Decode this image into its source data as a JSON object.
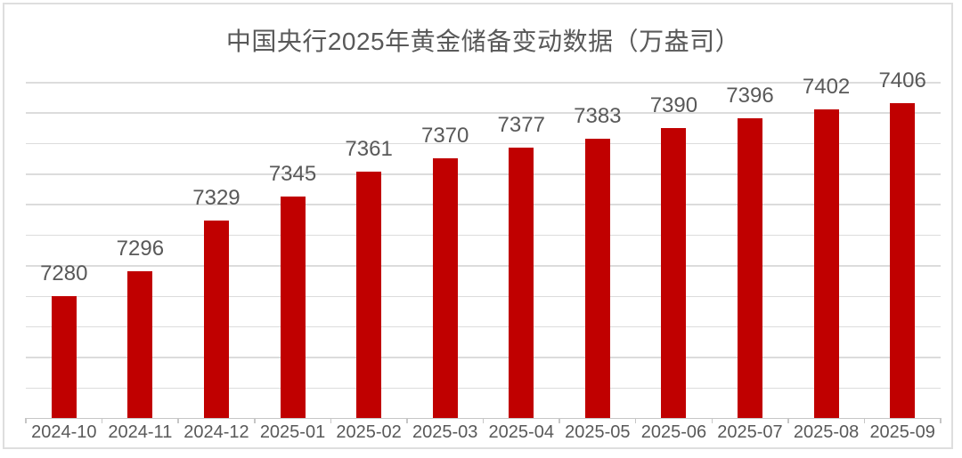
{
  "chart_data": {
    "type": "bar",
    "title": "中国央行2025年黄金储备变动数据（万盎司）",
    "categories": [
      "2024-10",
      "2024-11",
      "2024-12",
      "2025-01",
      "2025-02",
      "2025-03",
      "2025-04",
      "2025-05",
      "2025-06",
      "2025-07",
      "2025-08",
      "2025-09"
    ],
    "values": [
      7280,
      7296,
      7329,
      7345,
      7361,
      7370,
      7377,
      7383,
      7390,
      7396,
      7402,
      7406
    ],
    "xlabel": "",
    "ylabel": "",
    "ylim": [
      7200,
      7420
    ],
    "grid": true,
    "grid_step": 20,
    "legend": "none",
    "data_labels": true,
    "colors": {
      "bar": "#c00000",
      "text": "#595959",
      "gridline": "#dcdcdc",
      "axis": "#c6c6c6",
      "frame_border": "#dedede",
      "background": "#ffffff"
    }
  }
}
